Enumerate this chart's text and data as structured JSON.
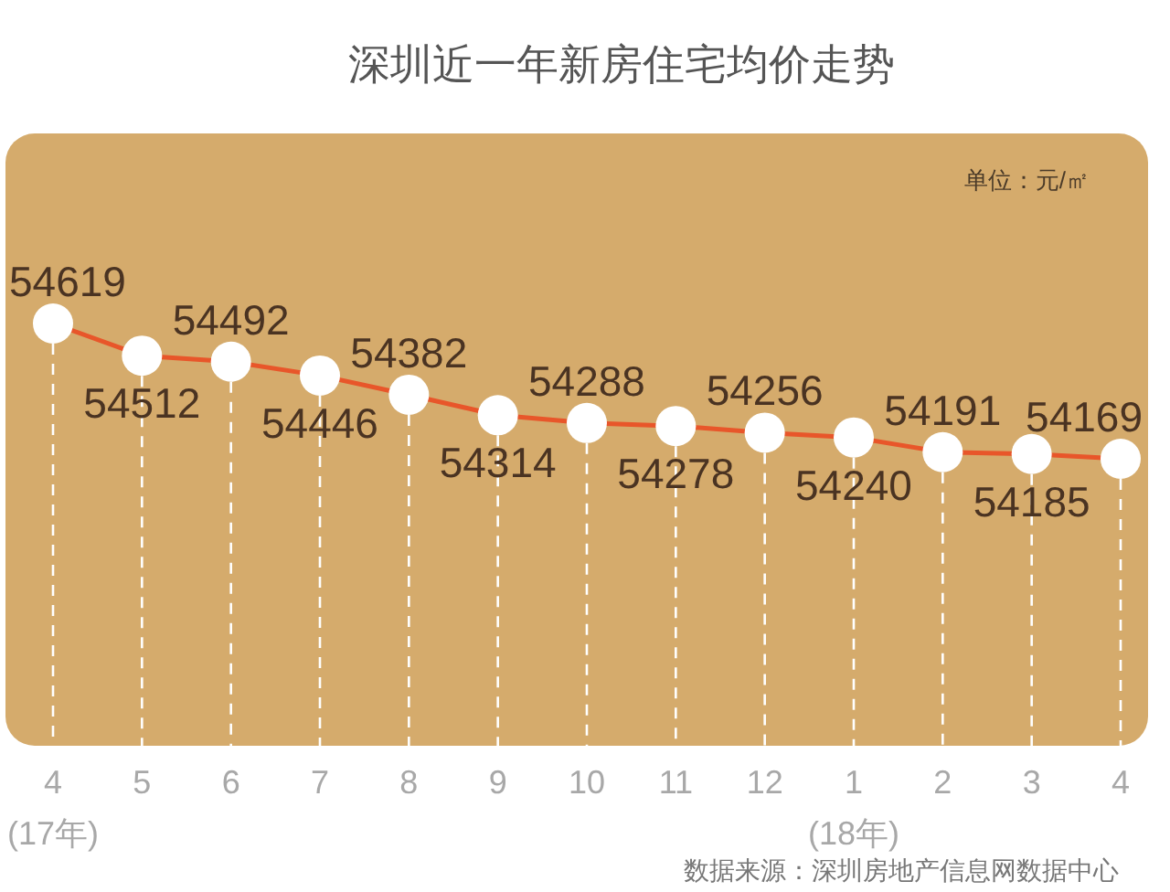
{
  "chart_data": {
    "type": "line",
    "title": "深圳近一年新房住宅均价走势",
    "categories": [
      "4\n(17年)",
      "5",
      "6",
      "7",
      "8",
      "9",
      "10",
      "11",
      "12",
      "1\n(18年)",
      "2",
      "3",
      "4"
    ],
    "series": [
      {
        "color": "#e8562a",
        "values": [
          54619,
          54512,
          54492,
          54446,
          54382,
          54314,
          54288,
          54278,
          54256,
          54240,
          54191,
          54185,
          54169
        ]
      }
    ],
    "data_labels": true,
    "marker": "circle",
    "grid": "x",
    "annotations": [
      "单位：元/㎡",
      "数据来源：深圳房地产信息网数据中心"
    ]
  }
}
